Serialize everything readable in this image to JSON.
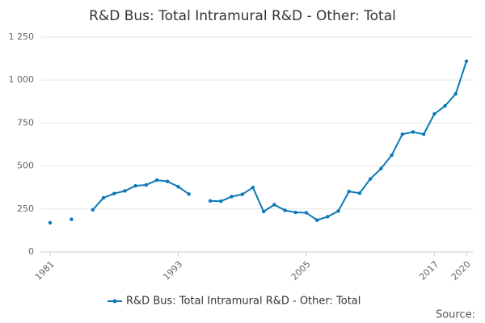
{
  "chart_data": {
    "type": "line",
    "title": "R&D Bus: Total Intramural R&D - Other: Total",
    "x": [
      1981,
      1982,
      1983,
      1984,
      1985,
      1986,
      1987,
      1988,
      1989,
      1990,
      1991,
      1992,
      1993,
      1994,
      1995,
      1996,
      1997,
      1998,
      1999,
      2000,
      2001,
      2002,
      2003,
      2004,
      2005,
      2006,
      2007,
      2008,
      2009,
      2010,
      2011,
      2012,
      2013,
      2014,
      2015,
      2016,
      2017,
      2018,
      2019,
      2020
    ],
    "series": [
      {
        "name": "R&D Bus: Total Intramural R&D - Other: Total",
        "color": "#0c78b8",
        "values": [
          170,
          null,
          190,
          null,
          245,
          315,
          340,
          355,
          385,
          390,
          418,
          410,
          380,
          337,
          null,
          297,
          295,
          322,
          335,
          375,
          235,
          275,
          242,
          230,
          228,
          185,
          205,
          238,
          352,
          342,
          425,
          485,
          563,
          685,
          698,
          685,
          803,
          850,
          920,
          1110
        ]
      }
    ],
    "xlim": [
      1981,
      2020
    ],
    "xticks": [
      1981,
      1993,
      2005,
      2017,
      2020
    ],
    "ylim": [
      0,
      1250
    ],
    "yticks": [
      0,
      250,
      500,
      750,
      {
        "value": 1000,
        "label": "1 000"
      },
      {
        "value": 1250,
        "label": "1 250"
      }
    ],
    "grid": true,
    "legend": "bottom",
    "source": "Source:"
  }
}
